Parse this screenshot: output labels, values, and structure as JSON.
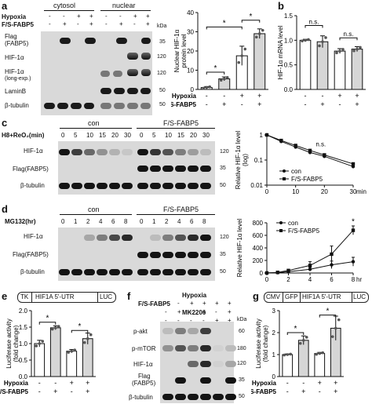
{
  "panels": {
    "a": {
      "letter": "a",
      "groups": [
        "cytosol",
        "nuclear"
      ],
      "row_labels": [
        "Hypoxia",
        "F/S-FABP5"
      ],
      "signs_hypoxia": [
        "-",
        "-",
        "+",
        "+",
        "-",
        "-",
        "+",
        "+"
      ],
      "signs_fabp5": [
        "-",
        "+",
        "-",
        "+",
        "-",
        "+",
        "-",
        "+"
      ],
      "kda_label": "kDa",
      "blots": [
        {
          "name": "Flag",
          "sub": "(FABP5)",
          "kda": "35"
        },
        {
          "name": "HIF-1α",
          "sub": "",
          "kda": "120"
        },
        {
          "name": "HIF-1α",
          "sub": "(long-exp.)",
          "kda": "120"
        },
        {
          "name": "LaminB",
          "sub": "",
          "kda": "50"
        },
        {
          "name": "β-tubulin",
          "sub": "",
          "kda": "50"
        }
      ],
      "chart_data": {
        "type": "bar",
        "ylabel": "Nuclear HIF-1α protein level",
        "ylim": [
          0,
          40
        ],
        "yticks": [
          "0",
          "10",
          "20",
          "30",
          "40"
        ],
        "hypoxia": [
          "-",
          "-",
          "+",
          "+"
        ],
        "fabp5": [
          "-",
          "+",
          "-",
          "+"
        ],
        "values": [
          1,
          5.5,
          17.5,
          29
        ],
        "errors": [
          0.5,
          1,
          5,
          2.5
        ],
        "sig": [
          "*",
          "*",
          "*"
        ]
      }
    },
    "b": {
      "letter": "b",
      "chart_data": {
        "type": "bar",
        "ylabel": "HIF-1α mRNA level",
        "ylim": [
          0,
          1.5
        ],
        "yticks": [
          "0.0",
          "0.5",
          "1.0",
          "1.5"
        ],
        "hypoxia": [
          "-",
          "-",
          "+",
          "+"
        ],
        "fabp5": [
          "-",
          "+",
          "-",
          "+"
        ],
        "values": [
          1.0,
          0.97,
          0.78,
          0.82
        ],
        "errors": [
          0.02,
          0.12,
          0.05,
          0.05
        ],
        "sig": [
          "n.s.",
          "n.s."
        ]
      },
      "row_labels": [
        "Hypoxia",
        "F/S-FABP5"
      ]
    },
    "c": {
      "letter": "c",
      "x_label": "H8+ReO₂(min)",
      "groups": [
        "con",
        "F/S-FABP5"
      ],
      "times": [
        "0",
        "5",
        "10",
        "15",
        "20",
        "30",
        "0",
        "5",
        "10",
        "15",
        "20",
        "30"
      ],
      "blots": [
        {
          "name": "HIF-1α",
          "kda": "120"
        },
        {
          "name": "Flag(FABP5)",
          "kda": "35"
        },
        {
          "name": "β-tubulin",
          "kda": "50"
        }
      ],
      "chart_data": {
        "type": "line",
        "ylabel": "Relative HIF-1α level (log)",
        "xlabel": "min",
        "ylim": [
          0.01,
          1
        ],
        "yticks": [
          "1",
          "0.1",
          "0.01"
        ],
        "xticks": [
          "0",
          "10",
          "20",
          "30"
        ],
        "x": [
          0,
          5,
          10,
          15,
          20,
          30
        ],
        "series": [
          {
            "name": "con",
            "values": [
              1,
              0.55,
              0.33,
              0.2,
              0.14,
              0.055
            ]
          },
          {
            "name": "F/S-FABP5",
            "values": [
              1,
              0.6,
              0.38,
              0.24,
              0.16,
              0.07
            ]
          }
        ],
        "annotation": "n.s."
      }
    },
    "d": {
      "letter": "d",
      "x_label": "MG132(hr)",
      "groups": [
        "con",
        "F/S-FABP5"
      ],
      "times": [
        "0",
        "1",
        "2",
        "4",
        "6",
        "8",
        "0",
        "1",
        "2",
        "4",
        "6",
        "8"
      ],
      "blots": [
        {
          "name": "HIF-1α",
          "kda": "120"
        },
        {
          "name": "Flag(FABP5)",
          "kda": "35"
        },
        {
          "name": "β-tubulin",
          "kda": "50"
        }
      ],
      "chart_data": {
        "type": "line",
        "ylabel": "Relative HIF-1α level",
        "xlabel": "hr",
        "ylim": [
          0,
          800
        ],
        "yticks": [
          "0",
          "200",
          "400",
          "600",
          "800"
        ],
        "xticks": [
          "0",
          "2",
          "4",
          "6",
          "8"
        ],
        "x": [
          0,
          1,
          2,
          4,
          6,
          8
        ],
        "series": [
          {
            "name": "con",
            "values": [
              1,
              5,
              20,
              60,
              130,
              180
            ]
          },
          {
            "name": "F/S-FABP5",
            "values": [
              1,
              10,
              40,
              120,
              300,
              680
            ]
          }
        ],
        "errors": [
          [
            0,
            2,
            10,
            30,
            60,
            70
          ],
          [
            0,
            5,
            15,
            60,
            130,
            70
          ]
        ],
        "annotation": "*"
      }
    },
    "e": {
      "letter": "e",
      "construct": [
        "TK",
        "HIF1A 5'-UTR",
        "LUC"
      ],
      "chart_data": {
        "type": "bar",
        "ylabel": "Luciferase activity (fold change)",
        "ylim": [
          0,
          2.0
        ],
        "yticks": [
          "0.0",
          "0.5",
          "1.0",
          "1.5",
          "2.0"
        ],
        "hypoxia": [
          "-",
          "-",
          "+",
          "+"
        ],
        "fabp5": [
          "-",
          "+",
          "-",
          "+"
        ],
        "values": [
          1.0,
          1.48,
          0.77,
          1.15
        ],
        "errors": [
          0.1,
          0.06,
          0.05,
          0.17
        ],
        "sig": [
          "*",
          "*"
        ]
      },
      "row_labels": [
        "Hypoxia",
        "F/S-FABP5"
      ]
    },
    "f": {
      "letter": "f",
      "row_labels": [
        "Hypoxia",
        "F/S-FABP5",
        "MK2206"
      ],
      "signs": [
        [
          "-",
          "-",
          "+",
          "+",
          "+",
          "+"
        ],
        [
          "-",
          "+",
          "-",
          "+",
          "-",
          "+"
        ],
        [
          "-",
          "-",
          "-",
          "-",
          "+",
          "+"
        ]
      ],
      "kda_label": "kDa",
      "blots": [
        {
          "name": "p-akt",
          "kda": "60"
        },
        {
          "name": "p-mTOR",
          "kda": "180"
        },
        {
          "name": "HIF-1α",
          "kda": "120"
        },
        {
          "name": "Flag",
          "sub": "(FABP5)",
          "kda": "35"
        },
        {
          "name": "β-tubulin",
          "kda": "50"
        }
      ]
    },
    "g": {
      "letter": "g",
      "construct": [
        "CMV",
        "GFP",
        "HIF1A 5'-UTR",
        "LUC"
      ],
      "chart_data": {
        "type": "bar",
        "ylabel": "Luciferase activity (fold change)",
        "ylim": [
          0,
          3
        ],
        "yticks": [
          "0",
          "1",
          "2",
          "3"
        ],
        "hypoxia": [
          "-",
          "-",
          "+",
          "+"
        ],
        "fabp5": [
          "-",
          "+",
          "-",
          "+"
        ],
        "values": [
          1.0,
          1.65,
          1.05,
          2.2
        ],
        "errors": [
          0.03,
          0.2,
          0.05,
          0.55
        ],
        "sig": [
          "*",
          "*"
        ]
      },
      "row_labels": [
        "Hypoxia",
        "F/S-FABP5"
      ]
    }
  }
}
